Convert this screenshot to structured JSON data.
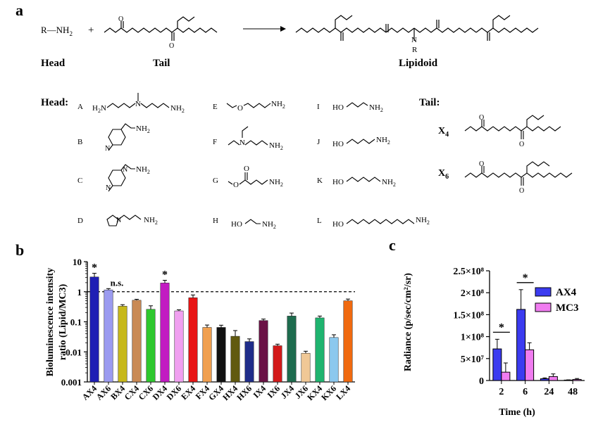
{
  "panel_a": {
    "label": "a",
    "head_formula": "R—NH",
    "head_sub": "2",
    "plus": "+",
    "row_head": "Head",
    "row_tail": "Tail",
    "row_product": "Lipidoid",
    "heads_title": "Head:",
    "tails_title": "Tail:",
    "product_R": "R",
    "heads": [
      "A",
      "B",
      "C",
      "D",
      "E",
      "F",
      "G",
      "H",
      "I",
      "J",
      "K",
      "L"
    ],
    "tails": [
      {
        "label": "X",
        "sub": "4"
      },
      {
        "label": "X",
        "sub": "6"
      }
    ],
    "atom_text": {
      "nh2": "NH",
      "two": "2",
      "h2n": "H",
      "n": "N",
      "o": "O",
      "ho": "HO"
    }
  },
  "panel_b": {
    "label": "b",
    "ylabel_line1": "Bioluminescence  intensity",
    "ylabel_line2": "ratio (Lipid/MC3)",
    "annotation_ns": "n.s.",
    "star": "*"
  },
  "panel_c": {
    "label": "c",
    "ylabel": "Radiance (p/sec/cm²/sr)",
    "xlabel": "Time (h)",
    "star": "*"
  },
  "chart_data": [
    {
      "type": "bar",
      "categories": [
        "AX4",
        "AX6",
        "BX4",
        "CX4",
        "CX6",
        "DX4",
        "DX6",
        "EX4",
        "FX4",
        "GX4",
        "HX4",
        "HX6",
        "IX4",
        "IX6",
        "JX4",
        "JX6",
        "KX4",
        "KX6",
        "LX4"
      ],
      "values": [
        3.1,
        1.15,
        0.33,
        0.52,
        0.26,
        1.95,
        0.23,
        0.63,
        0.065,
        0.065,
        0.033,
        0.022,
        0.11,
        0.016,
        0.155,
        0.009,
        0.135,
        0.03,
        0.5
      ],
      "errors": [
        1.0,
        0.12,
        0.04,
        0.04,
        0.08,
        0.45,
        0.02,
        0.15,
        0.013,
        0.012,
        0.018,
        0.005,
        0.013,
        0.002,
        0.04,
        0.0015,
        0.02,
        0.007,
        0.07
      ],
      "colors": [
        "#1f1fb4",
        "#9b9bf0",
        "#c7b81a",
        "#c98a55",
        "#2ec82e",
        "#c21bc2",
        "#f0a0f0",
        "#e81515",
        "#f0a050",
        "#111111",
        "#615a10",
        "#1f2d8a",
        "#6a1245",
        "#d31a1a",
        "#1e6c4e",
        "#f0c896",
        "#1fb46f",
        "#8cc8ee",
        "#f06a10"
      ],
      "ylabel": "Bioluminescence  intensity ratio (Lipid/MC3)",
      "yscale": "log",
      "ylim": [
        0.001,
        10
      ],
      "yticks": [
        "0.001",
        "0.01",
        "0.1",
        "1",
        "10"
      ],
      "reference_line": 1,
      "grid": false,
      "significance": [
        {
          "category": "AX4",
          "mark": "*"
        },
        {
          "category": "AX6",
          "mark": "n.s."
        },
        {
          "category": "DX4",
          "mark": "*"
        }
      ]
    },
    {
      "type": "bar",
      "categories": [
        "2",
        "6",
        "24",
        "48"
      ],
      "series": [
        {
          "name": "AX4",
          "color": "#3b3bf0",
          "values": [
            72000000,
            162000000,
            4000000,
            1000000
          ],
          "errors": [
            22000000,
            45000000,
            2000000,
            500000
          ]
        },
        {
          "name": "MC3",
          "color": "#f07cf0",
          "values": [
            19000000,
            70000000,
            9000000,
            2500000
          ],
          "errors": [
            21000000,
            16000000,
            6000000,
            2000000
          ]
        }
      ],
      "xlabel": "Time (h)",
      "ylabel": "Radiance (p/sec/cm²/sr)",
      "ylim": [
        0,
        250000000
      ],
      "yticks": [
        "0",
        "5×10⁷",
        "1×10⁸",
        "1.5×10⁸",
        "2×10⁸",
        "2.5×10⁸"
      ],
      "legend_position": "top-right",
      "significance": [
        {
          "category": "2",
          "mark": "*"
        },
        {
          "category": "6",
          "mark": "*"
        }
      ]
    }
  ]
}
